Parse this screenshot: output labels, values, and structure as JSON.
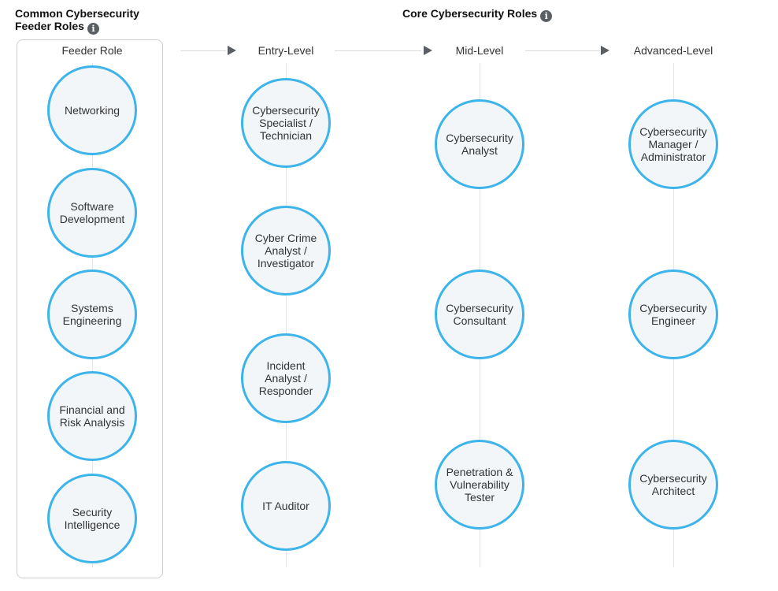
{
  "headings": {
    "feeder_line1": "Common Cybersecurity",
    "feeder_line2": "Feeder Roles",
    "core": "Core Cybersecurity Roles",
    "info_glyph": "i"
  },
  "columns": {
    "feeder": "Feeder Role",
    "entry": "Entry-Level",
    "mid": "Mid-Level",
    "advanced": "Advanced-Level"
  },
  "feeder_roles": [
    "Networking",
    "Software Development",
    "Systems Engineering",
    "Financial and Risk Analysis",
    "Security Intelligence"
  ],
  "entry_roles": [
    "Cybersecurity Specialist / Technician",
    "Cyber Crime Analyst / Investigator",
    "Incident Analyst / Responder",
    "IT Auditor"
  ],
  "mid_roles": [
    "Cybersecurity Analyst",
    "Cybersecurity Consultant",
    "Penetration & Vulnerability Tester"
  ],
  "advanced_roles": [
    "Cybersecurity Manager / Administrator",
    "Cybersecurity Engineer",
    "Cybersecurity Architect"
  ],
  "colors": {
    "node_border": "#3db4ea",
    "node_fill": "#f2f6f9",
    "arrow": "#5a5f66"
  }
}
